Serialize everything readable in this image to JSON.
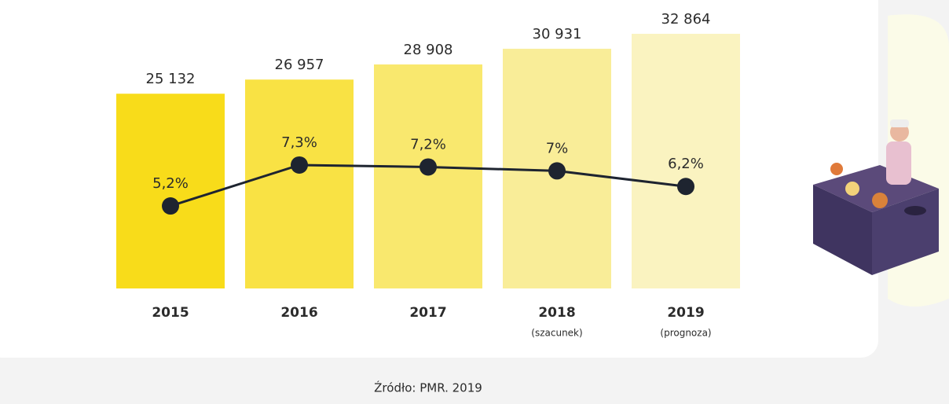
{
  "chart_data": {
    "type": "bar",
    "categories": [
      "2015",
      "2016",
      "2017",
      "2018",
      "2019"
    ],
    "category_notes": [
      null,
      null,
      null,
      "(szacunek)",
      "(prognoza)"
    ],
    "series": [
      {
        "type": "bar",
        "values": [
          25132,
          26957,
          28908,
          30931,
          32864
        ],
        "value_labels": [
          "25 132",
          "26 957",
          "28 908",
          "30 931",
          "32 864"
        ],
        "colors": [
          "#f8dc1a",
          "#f9e244",
          "#f9e86e",
          "#f9ed98",
          "#faf3c0"
        ]
      },
      {
        "type": "line",
        "axis": "y2",
        "values": [
          5.2,
          7.3,
          7.2,
          7,
          6.2
        ],
        "value_labels": [
          "5,2%",
          "7,3%",
          "7,2%",
          "7%",
          "6,2%"
        ],
        "color": "#1e2430"
      }
    ],
    "source": "Źródło: PMR. 2019"
  }
}
